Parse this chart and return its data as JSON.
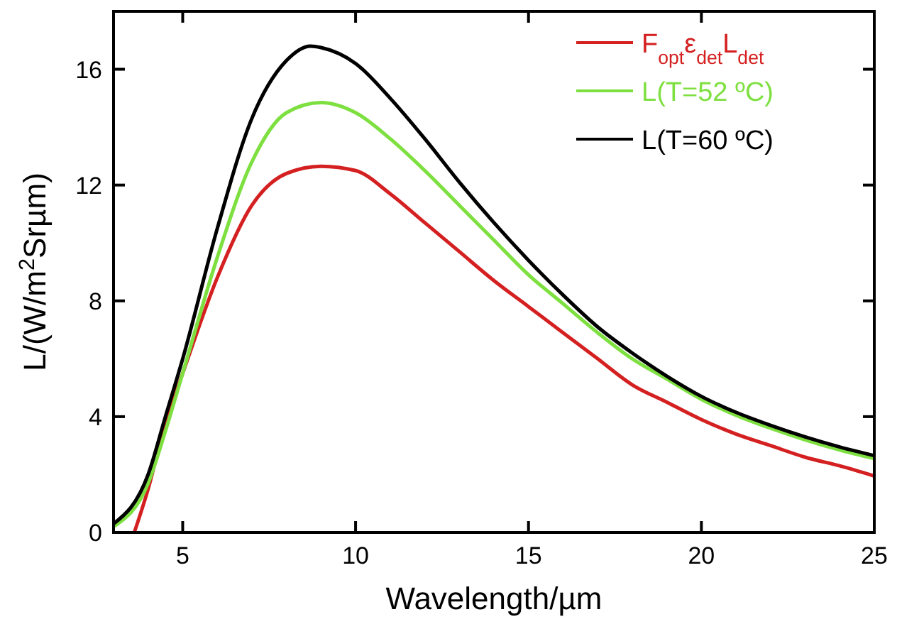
{
  "chart_data": {
    "type": "line",
    "xlabel": "Wavelength/µm",
    "ylabel": "L/(W/m$^{2}$Srµm)",
    "xlim": [
      3,
      25
    ],
    "ylim": [
      0,
      18
    ],
    "xticks": [
      5,
      10,
      15,
      20,
      25
    ],
    "yticks": [
      0,
      4,
      8,
      12,
      16
    ],
    "legend": "top right",
    "grid": false,
    "marker": "none",
    "line_style": "solid",
    "series": [
      {
        "name": "F$_{opt}$ε$_{det}$L$_{det}$",
        "color": "#d42020",
        "x": [
          3.6,
          4,
          4.5,
          5,
          6,
          7,
          8,
          9,
          10,
          11,
          12,
          13,
          14,
          15,
          16,
          17,
          18,
          19,
          20,
          21,
          22,
          23,
          24,
          25
        ],
        "values": [
          0,
          1.5,
          3.8,
          5.5,
          8.8,
          11.3,
          12.4,
          12.65,
          12.5,
          11.7,
          10.7,
          9.7,
          8.7,
          7.8,
          6.9,
          6.0,
          5.1,
          4.5,
          3.9,
          3.4,
          3.0,
          2.6,
          2.3,
          1.95
        ]
      },
      {
        "name": "L(T=52 ºC)",
        "color": "#7ee040",
        "x": [
          3,
          4,
          4.5,
          5,
          6,
          7,
          8,
          9,
          10,
          11,
          12,
          13,
          14,
          15,
          16,
          17,
          18,
          19,
          20,
          21,
          22,
          23,
          24,
          25
        ],
        "values": [
          0.2,
          1.7,
          3.5,
          5.5,
          9.5,
          12.8,
          14.5,
          14.85,
          14.5,
          13.6,
          12.5,
          11.3,
          10.1,
          8.9,
          7.9,
          6.9,
          6.0,
          5.3,
          4.6,
          4.05,
          3.6,
          3.2,
          2.85,
          2.55
        ]
      },
      {
        "name": "L(T=60 ºC)",
        "color": "#000000",
        "x": [
          3,
          4,
          4.5,
          5,
          6,
          7,
          8,
          8.7,
          9,
          10,
          11,
          12,
          13,
          14,
          15,
          16,
          17,
          18,
          19,
          20,
          21,
          22,
          23,
          24,
          25
        ],
        "values": [
          0.3,
          2.0,
          4.0,
          6.0,
          10.5,
          14.3,
          16.3,
          16.8,
          16.75,
          16.2,
          15.0,
          13.6,
          12.1,
          10.7,
          9.4,
          8.2,
          7.1,
          6.2,
          5.4,
          4.7,
          4.15,
          3.7,
          3.3,
          2.95,
          2.65
        ]
      }
    ]
  }
}
